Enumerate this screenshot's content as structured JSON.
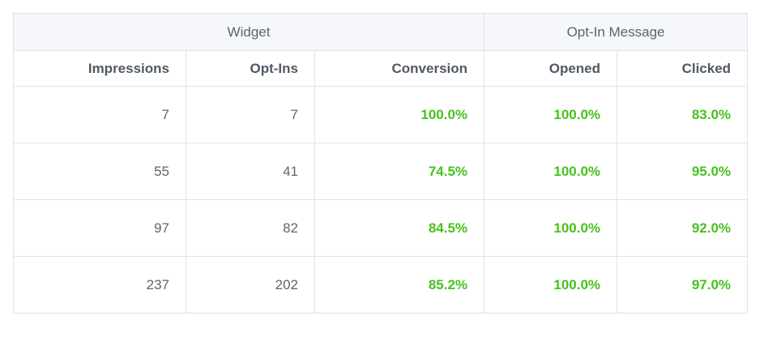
{
  "groups": {
    "widget": "Widget",
    "optin_message": "Opt-In Message"
  },
  "columns": [
    "Impressions",
    "Opt-Ins",
    "Conversion",
    "Opened",
    "Clicked"
  ],
  "rows": [
    {
      "impressions": "7",
      "optins": "7",
      "conversion": "100.0%",
      "opened": "100.0%",
      "clicked": "83.0%"
    },
    {
      "impressions": "55",
      "optins": "41",
      "conversion": "74.5%",
      "opened": "100.0%",
      "clicked": "95.0%"
    },
    {
      "impressions": "97",
      "optins": "82",
      "conversion": "84.5%",
      "opened": "100.0%",
      "clicked": "92.0%"
    },
    {
      "impressions": "237",
      "optins": "202",
      "conversion": "85.2%",
      "opened": "100.0%",
      "clicked": "97.0%"
    }
  ],
  "colors": {
    "percentage_text": "#46c21d",
    "group_header_bg": "#f5f7fa",
    "border": "#dfe3e8"
  }
}
